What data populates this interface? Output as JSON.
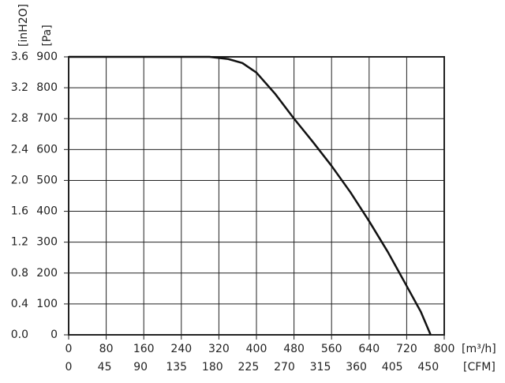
{
  "chart_data": {
    "type": "line",
    "xlabel": "[m³/h]",
    "x2label": "[CFM]",
    "ylabel": "[Pa]",
    "y2label": "[inH2O]",
    "xlim": [
      0,
      800
    ],
    "xticks": [
      0,
      80,
      160,
      240,
      320,
      400,
      480,
      560,
      640,
      720,
      800
    ],
    "x2lim": [
      0,
      470
    ],
    "x2ticks": [
      0,
      45,
      90,
      135,
      180,
      225,
      270,
      315,
      360,
      405,
      450
    ],
    "ylim": [
      0,
      900
    ],
    "yticks": [
      0,
      100,
      200,
      300,
      400,
      500,
      600,
      700,
      800,
      900
    ],
    "y2lim": [
      0,
      3.6
    ],
    "y2ticks": [
      {
        "value": 0,
        "label": "0.0"
      },
      0.4,
      0.8,
      1.2,
      1.6,
      {
        "value": 2,
        "label": "2.0"
      },
      2.4,
      2.8,
      3.2,
      3.6
    ],
    "grid": true,
    "series": [
      {
        "color": "#111111",
        "x": [
          0,
          100,
          200,
          300,
          340,
          370,
          400,
          440,
          480,
          520,
          560,
          600,
          640,
          680,
          720,
          750,
          771
        ],
        "values": [
          900,
          900,
          900,
          900,
          893,
          880,
          849,
          780,
          700,
          625,
          547,
          462,
          368,
          268,
          158,
          75,
          0
        ]
      }
    ]
  }
}
